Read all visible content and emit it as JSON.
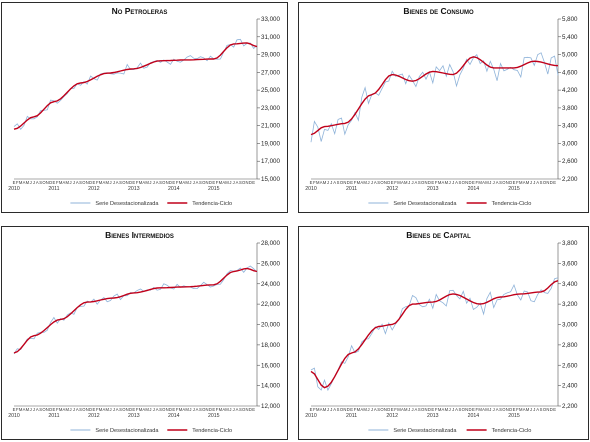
{
  "months": [
    "E",
    "F",
    "M",
    "A",
    "M",
    "J",
    "J",
    "A",
    "S",
    "O",
    "N",
    "D"
  ],
  "series_names": [
    "Serie Desestacionalizada",
    "Tendencia-Ciclo"
  ],
  "colors": {
    "seasonal": "#8fb3d9",
    "trend": "#c0001a",
    "axis": "#555555",
    "frame": "#2b2b2b"
  },
  "chart_data": [
    {
      "type": "line",
      "title": "No Petroleras",
      "x_start": "2010-01",
      "x_end": "2015-01",
      "frequency": "monthly",
      "year_labels": [
        "2010",
        "2011",
        "2012",
        "2013",
        "2014",
        "2015"
      ],
      "ylim": [
        15000,
        33000
      ],
      "yticks": [
        15000,
        17000,
        19000,
        21000,
        23000,
        25000,
        27000,
        29000,
        31000,
        33000
      ],
      "ytick_labels": [
        "15,000",
        "17,000",
        "19,000",
        "21,000",
        "23,000",
        "25,000",
        "27,000",
        "29,000",
        "31,000",
        "33,000"
      ],
      "trend_anchors": [
        [
          0,
          20600
        ],
        [
          6,
          22000
        ],
        [
          12,
          23700
        ],
        [
          20,
          25800
        ],
        [
          28,
          26900
        ],
        [
          36,
          27400
        ],
        [
          44,
          28300
        ],
        [
          52,
          28400
        ],
        [
          60,
          28500
        ],
        [
          66,
          30200
        ],
        [
          70,
          30300
        ],
        [
          73,
          29900
        ]
      ],
      "noise": 380,
      "legend_position": "bottom"
    },
    {
      "type": "line",
      "title": "Bienes de Consumo",
      "x_start": "2010-01",
      "x_end": "2015-01",
      "frequency": "monthly",
      "year_labels": [
        "2010",
        "2011",
        "2012",
        "2013",
        "2014",
        "2015"
      ],
      "ylim": [
        2200,
        5800
      ],
      "yticks": [
        2200,
        2600,
        3000,
        3400,
        3800,
        4200,
        4600,
        5000,
        5400,
        5800
      ],
      "ytick_labels": [
        "2,200",
        "2,600",
        "3,000",
        "3,400",
        "3,800",
        "4,200",
        "4,600",
        "5,000",
        "5,400",
        "5,800"
      ],
      "trend_anchors": [
        [
          0,
          3200
        ],
        [
          4,
          3380
        ],
        [
          10,
          3450
        ],
        [
          18,
          4100
        ],
        [
          24,
          4550
        ],
        [
          30,
          4400
        ],
        [
          36,
          4620
        ],
        [
          42,
          4550
        ],
        [
          48,
          4950
        ],
        [
          54,
          4700
        ],
        [
          60,
          4700
        ],
        [
          66,
          4850
        ],
        [
          73,
          4750
        ]
      ],
      "noise": 230,
      "legend_position": "bottom"
    },
    {
      "type": "line",
      "title": "Bienes Intermedios",
      "x_start": "2010-01",
      "x_end": "2015-01",
      "frequency": "monthly",
      "year_labels": [
        "2010",
        "2011",
        "2012",
        "2013",
        "2014",
        "2015"
      ],
      "ylim": [
        12000,
        28000
      ],
      "yticks": [
        12000,
        14000,
        16000,
        18000,
        20000,
        22000,
        24000,
        26000,
        28000
      ],
      "ytick_labels": [
        "12,000",
        "14,000",
        "16,000",
        "18,000",
        "20,000",
        "22,000",
        "24,000",
        "26,000",
        "28,000"
      ],
      "trend_anchors": [
        [
          0,
          17200
        ],
        [
          6,
          18900
        ],
        [
          14,
          20500
        ],
        [
          22,
          22200
        ],
        [
          30,
          22600
        ],
        [
          36,
          23100
        ],
        [
          44,
          23600
        ],
        [
          52,
          23700
        ],
        [
          60,
          23900
        ],
        [
          66,
          25200
        ],
        [
          70,
          25500
        ],
        [
          73,
          25200
        ]
      ],
      "noise": 300,
      "legend_position": "bottom"
    },
    {
      "type": "line",
      "title": "Bienes de Capital",
      "x_start": "2010-01",
      "x_end": "2015-01",
      "frequency": "monthly",
      "year_labels": [
        "2010",
        "2011",
        "2012",
        "2013",
        "2014",
        "2015"
      ],
      "ylim": [
        2200,
        3800
      ],
      "yticks": [
        2200,
        2400,
        2600,
        2800,
        3000,
        3200,
        3400,
        3600,
        3800
      ],
      "ytick_labels": [
        "2,200",
        "2,400",
        "2,600",
        "2,800",
        "3,000",
        "3,200",
        "3,400",
        "3,600",
        "3,800"
      ],
      "trend_anchors": [
        [
          0,
          2540
        ],
        [
          4,
          2380
        ],
        [
          12,
          2720
        ],
        [
          20,
          2980
        ],
        [
          24,
          3000
        ],
        [
          30,
          3200
        ],
        [
          36,
          3220
        ],
        [
          42,
          3300
        ],
        [
          50,
          3200
        ],
        [
          56,
          3270
        ],
        [
          62,
          3300
        ],
        [
          68,
          3320
        ],
        [
          73,
          3430
        ]
      ],
      "noise": 70,
      "legend_position": "bottom"
    }
  ]
}
